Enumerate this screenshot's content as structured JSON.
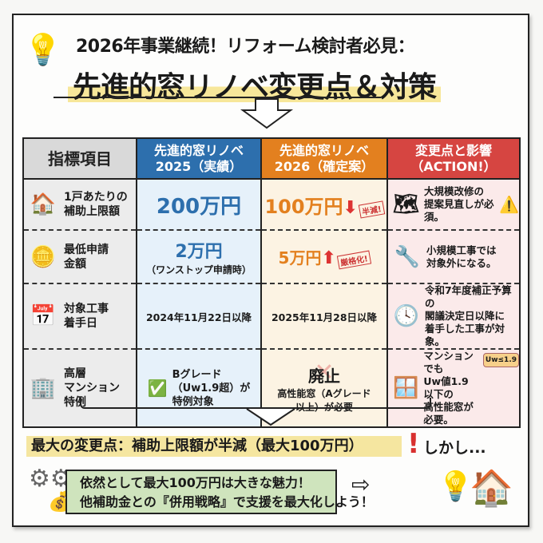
{
  "header": {
    "subtitle": "2026年事業継続！リフォーム検討者必見：",
    "title": "先進的窓リノベ変更点＆対策"
  },
  "table": {
    "columns": [
      "指標項目",
      "先進的窓リノベ\n2025（実績）",
      "先進的窓リノベ\n2026（確定案）",
      "変更点と影響\n（ACTION!）"
    ],
    "column_colors": [
      "#d9d9d9",
      "#2d6fad",
      "#e3801f",
      "#d64541"
    ],
    "rows": [
      {
        "icon": "house-money-icon",
        "item": "1戸あたりの\n補助上限額",
        "y2025": "200万円",
        "y2026": "100万円",
        "trend": "down-arrow-icon",
        "stamp": "半減!",
        "action_icon": "blueprint-icon",
        "action": "大規模改修の\n提案見直しが必須。",
        "action_badge_icon": "warning-icon"
      },
      {
        "icon": "coins-icon",
        "item": "最低申請\n金額",
        "y2025": "2万円",
        "y2025_note": "（ワンストップ申請時）",
        "y2026": "5万円",
        "trend": "up-arrow-icon",
        "stamp": "厳格化!",
        "action_icon": "wrench-icon",
        "action": "小規模工事では\n対象外になる。"
      },
      {
        "icon": "calendar-icon",
        "item": "対象工事\n着手日",
        "y2025": "2024年11月22日以降",
        "y2026": "2025年11月28日以降",
        "action_icon": "clock-icon",
        "action": "令和7年度補正予算の\n閣議決定日以降に\n着手した工事が対象。"
      },
      {
        "icon": "building-icon",
        "item": "高層\nマンション\n特例",
        "y2025": "Bグレード\n（Uw1.9超）が\n特例対象",
        "y2025_icon": "check-icon",
        "y2026": "廃止",
        "y2026_note": "高性能窓（Aグレード\n以上）が必要",
        "action_icon": "window-icon",
        "action": "マンションでも\nUw値1.9以下の\n高性能窓が必要。",
        "action_badge": "Uw≤1.9"
      }
    ]
  },
  "summary": {
    "banner": "最大の変更点：補助上限額が半減（最大100万円）",
    "exclaim": "!",
    "banner_tail": "しかし...",
    "message_line1": "依然として最大100万円は大きな魅力！",
    "message_line2": "他補助金との『併用戦略』で支援を最大化しよう！"
  }
}
